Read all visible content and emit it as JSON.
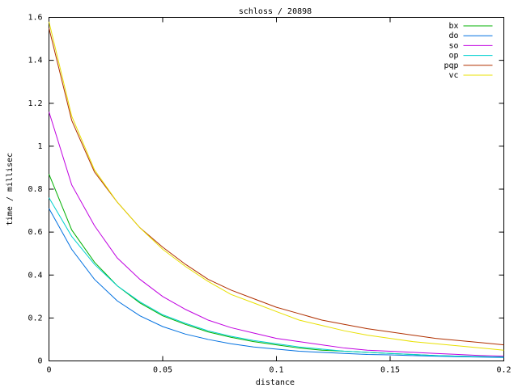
{
  "chart_data": {
    "type": "line",
    "title": "schloss / 20898",
    "x_label": "distance",
    "y_label": "time / millisec",
    "x": [
      0,
      0.01,
      0.02,
      0.03,
      0.04,
      0.05,
      0.06,
      0.07,
      0.08,
      0.09,
      0.1,
      0.11,
      0.12,
      0.13,
      0.14,
      0.15,
      0.16,
      0.17,
      0.18,
      0.19,
      0.2
    ],
    "series": [
      {
        "name": "bx",
        "color": "#00b000",
        "values": [
          0.87,
          0.61,
          0.46,
          0.35,
          0.27,
          0.21,
          0.17,
          0.135,
          0.11,
          0.09,
          0.075,
          0.06,
          0.05,
          0.045,
          0.04,
          0.035,
          0.03,
          0.025,
          0.022,
          0.02,
          0.018
        ]
      },
      {
        "name": "do",
        "color": "#0070e0",
        "values": [
          0.71,
          0.52,
          0.38,
          0.28,
          0.21,
          0.16,
          0.125,
          0.1,
          0.08,
          0.065,
          0.055,
          0.045,
          0.04,
          0.035,
          0.03,
          0.028,
          0.025,
          0.022,
          0.02,
          0.018,
          0.016
        ]
      },
      {
        "name": "so",
        "color": "#c000e0",
        "values": [
          1.16,
          0.82,
          0.63,
          0.48,
          0.38,
          0.3,
          0.24,
          0.19,
          0.155,
          0.13,
          0.105,
          0.09,
          0.075,
          0.06,
          0.05,
          0.045,
          0.04,
          0.035,
          0.03,
          0.025,
          0.022
        ]
      },
      {
        "name": "op",
        "color": "#00d0d0",
        "values": [
          0.76,
          0.58,
          0.45,
          0.35,
          0.275,
          0.215,
          0.175,
          0.14,
          0.115,
          0.095,
          0.08,
          0.065,
          0.055,
          0.045,
          0.04,
          0.035,
          0.03,
          0.025,
          0.022,
          0.02,
          0.018
        ]
      },
      {
        "name": "pqp",
        "color": "#b03000",
        "values": [
          1.55,
          1.12,
          0.88,
          0.74,
          0.62,
          0.53,
          0.45,
          0.38,
          0.33,
          0.29,
          0.25,
          0.22,
          0.19,
          0.17,
          0.15,
          0.135,
          0.12,
          0.105,
          0.095,
          0.085,
          0.075
        ]
      },
      {
        "name": "vc",
        "color": "#e8e000",
        "values": [
          1.58,
          1.14,
          0.89,
          0.74,
          0.62,
          0.52,
          0.44,
          0.37,
          0.31,
          0.27,
          0.23,
          0.19,
          0.165,
          0.14,
          0.12,
          0.105,
          0.09,
          0.08,
          0.07,
          0.06,
          0.05
        ]
      }
    ],
    "xlim": [
      0,
      0.2
    ],
    "xticks": [
      0,
      0.05,
      0.1,
      0.15,
      0.2
    ],
    "ylim": [
      0,
      1.6
    ],
    "yticks": [
      0,
      0.2,
      0.4,
      0.6,
      0.8,
      1,
      1.2,
      1.4,
      1.6
    ],
    "grid": false,
    "legend": "top-right"
  }
}
